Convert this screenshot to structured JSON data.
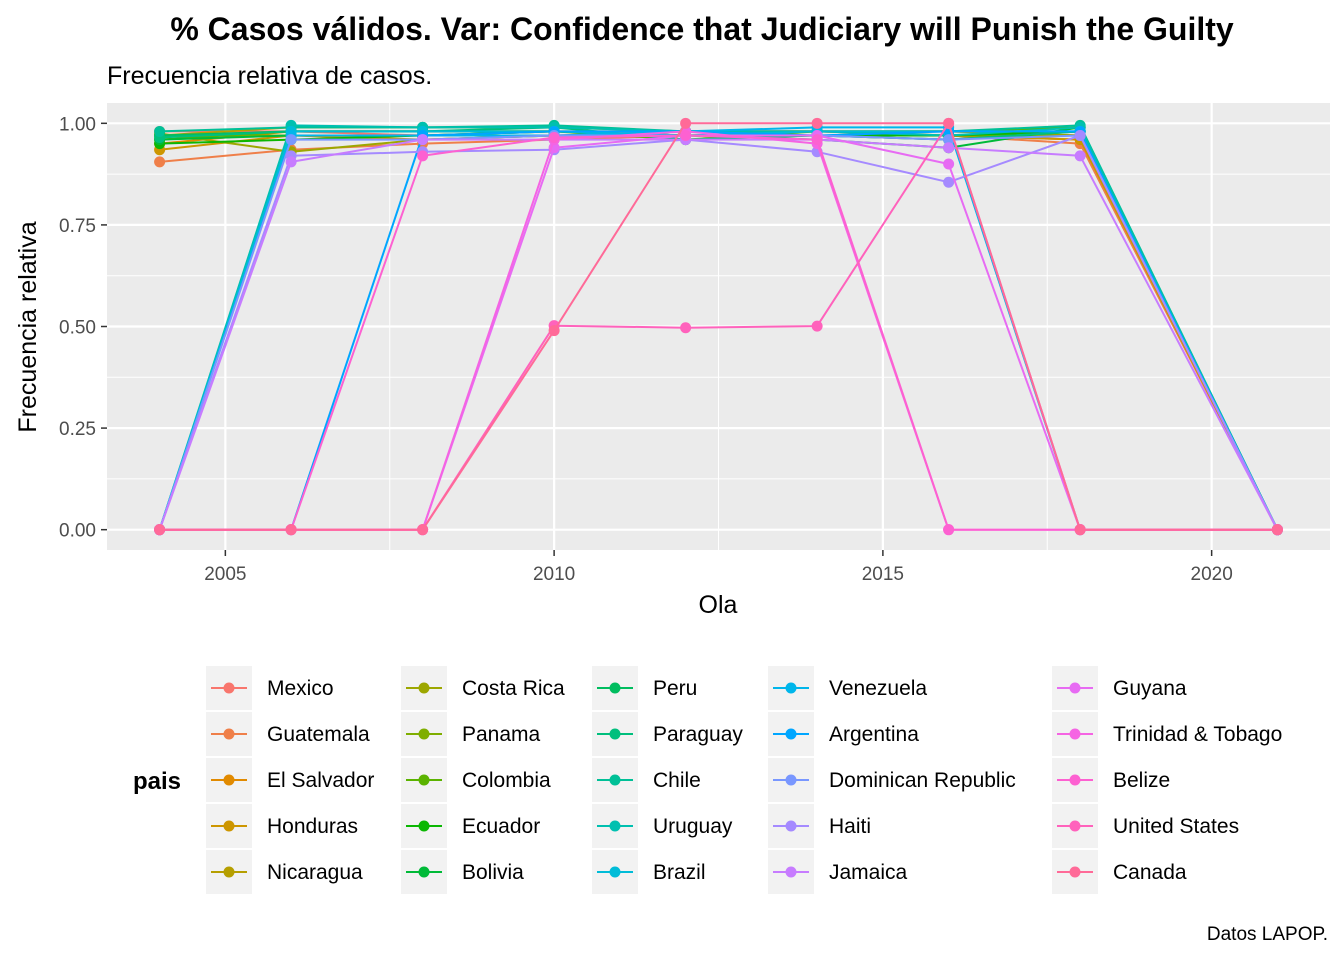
{
  "chart_data": {
    "type": "line",
    "title": "% Casos válidos. Var: Confidence that Judiciary will Punish the Guilty",
    "subtitle": "Frecuencia relativa de casos.",
    "xlabel": "Ola",
    "ylabel": "Frecuencia relativa",
    "caption": "Datos LAPOP.",
    "xlim": [
      2003.2,
      2021.8
    ],
    "ylim": [
      -0.05,
      1.05
    ],
    "x_ticks": [
      2005,
      2010,
      2015,
      2020
    ],
    "x_tick_labels": [
      "2005",
      "2010",
      "2015",
      "2020"
    ],
    "y_ticks": [
      0,
      0.25,
      0.5,
      0.75,
      1.0
    ],
    "y_tick_labels": [
      "0.00",
      "0.25",
      "0.50",
      "0.75",
      "1.00"
    ],
    "grid": true,
    "legend_title": "pais",
    "legend_position": "bottom",
    "x": [
      2004,
      2006,
      2008,
      2010,
      2012,
      2014,
      2016,
      2018,
      2021
    ],
    "series": [
      {
        "name": "Mexico",
        "color": "#F8766D",
        "values": [
          0.98,
          0.98,
          0.97,
          0.97,
          0.98,
          0.98,
          0.97,
          0.96,
          0
        ]
      },
      {
        "name": "Guatemala",
        "color": "#EF7F49",
        "values": [
          0.905,
          0.935,
          0.95,
          0.96,
          0.97,
          0.97,
          0.97,
          0.95,
          0
        ]
      },
      {
        "name": "El Salvador",
        "color": "#E18A00",
        "values": [
          0.95,
          0.98,
          0.98,
          0.98,
          0.98,
          0.98,
          0.98,
          0.97,
          0
        ]
      },
      {
        "name": "Honduras",
        "color": "#CD9600",
        "values": [
          0.935,
          0.97,
          0.96,
          0.97,
          0.97,
          0.97,
          0.97,
          0.96,
          0
        ]
      },
      {
        "name": "Nicaragua",
        "color": "#B69F00",
        "values": [
          0.97,
          0.99,
          0.99,
          0.99,
          0.98,
          0.98,
          0.98,
          0.97,
          0
        ]
      },
      {
        "name": "Costa Rica",
        "color": "#9DA700",
        "values": [
          0.975,
          0.93,
          0.96,
          0.97,
          0.97,
          0.98,
          0.97,
          0.98,
          0
        ]
      },
      {
        "name": "Panama",
        "color": "#7FAE00",
        "values": [
          0.97,
          0.97,
          0.97,
          0.98,
          0.97,
          0.97,
          0.97,
          0.97,
          0
        ]
      },
      {
        "name": "Colombia",
        "color": "#5BB300",
        "values": [
          0.96,
          0.98,
          0.98,
          0.98,
          0.96,
          0.98,
          0.98,
          0.99,
          0
        ]
      },
      {
        "name": "Ecuador",
        "color": "#0BB702",
        "values": [
          0.95,
          0.96,
          0.97,
          0.97,
          0.97,
          0.97,
          0.97,
          0.98,
          0
        ]
      },
      {
        "name": "Bolivia",
        "color": "#00BA38",
        "values": [
          0.96,
          0.97,
          0.97,
          0.98,
          0.97,
          0.96,
          0.94,
          0.99,
          0
        ]
      },
      {
        "name": "Peru",
        "color": "#00BD5F",
        "values": [
          0.97,
          0.98,
          0.98,
          0.98,
          0.97,
          0.97,
          0.96,
          0.98,
          0
        ]
      },
      {
        "name": "Paraguay",
        "color": "#00BF7D",
        "values": [
          0.965,
          0.98,
          0.98,
          0.99,
          0.96,
          0.97,
          0.96,
          0.98,
          0
        ]
      },
      {
        "name": "Chile",
        "color": "#00C097",
        "values": [
          0.98,
          0.99,
          0.99,
          0.995,
          0.98,
          0.98,
          0.98,
          0.995,
          0
        ]
      },
      {
        "name": "Uruguay",
        "color": "#00C0B0",
        "values": [
          0,
          0.995,
          0.99,
          0.99,
          0.98,
          0.98,
          0.97,
          0.99,
          0
        ]
      },
      {
        "name": "Brazil",
        "color": "#00BCD8",
        "values": [
          0,
          0.98,
          0.98,
          0.98,
          0.97,
          0.98,
          0.98,
          0.98,
          0
        ]
      },
      {
        "name": "Venezuela",
        "color": "#00B6EB",
        "values": [
          0,
          0.97,
          0.97,
          0.97,
          0.98,
          0.99,
          0.99,
          0,
          0
        ]
      },
      {
        "name": "Argentina",
        "color": "#00A6FF",
        "values": [
          0,
          0,
          0.97,
          0.98,
          0.98,
          0.97,
          0.98,
          0.98,
          0
        ]
      },
      {
        "name": "Dominican Republic",
        "color": "#7997FF",
        "values": [
          0,
          0.96,
          0.96,
          0.97,
          0.97,
          0.97,
          0.96,
          0.97,
          0
        ]
      },
      {
        "name": "Haiti",
        "color": "#A58AFF",
        "values": [
          0,
          0.92,
          0.93,
          0.935,
          0.96,
          0.93,
          0.855,
          0.97,
          0
        ]
      },
      {
        "name": "Jamaica",
        "color": "#C77CFF",
        "values": [
          0,
          0.905,
          0.96,
          0.96,
          0.96,
          0.96,
          0.94,
          0.92,
          0
        ]
      },
      {
        "name": "Guyana",
        "color": "#E76BF3",
        "values": [
          0,
          0,
          0,
          0.94,
          0.97,
          0.97,
          0.9,
          0,
          0
        ]
      },
      {
        "name": "Trinidad & Tobago",
        "color": "#F564E3",
        "values": [
          0,
          0,
          0,
          0.96,
          0.98,
          0.95,
          0,
          0,
          0
        ]
      },
      {
        "name": "Belize",
        "color": "#FD61D1",
        "values": [
          0,
          0,
          0.92,
          0.965,
          0.97,
          0.96,
          0,
          0,
          0
        ]
      },
      {
        "name": "United States",
        "color": "#FF62BC",
        "values": [
          0,
          0,
          0,
          0.502,
          0.497,
          0.501,
          1.0,
          0,
          0
        ]
      },
      {
        "name": "Canada",
        "color": "#FF6A98",
        "values": [
          0,
          0,
          0,
          0.49,
          1.0,
          1.0,
          1.0,
          0,
          0
        ]
      }
    ]
  }
}
